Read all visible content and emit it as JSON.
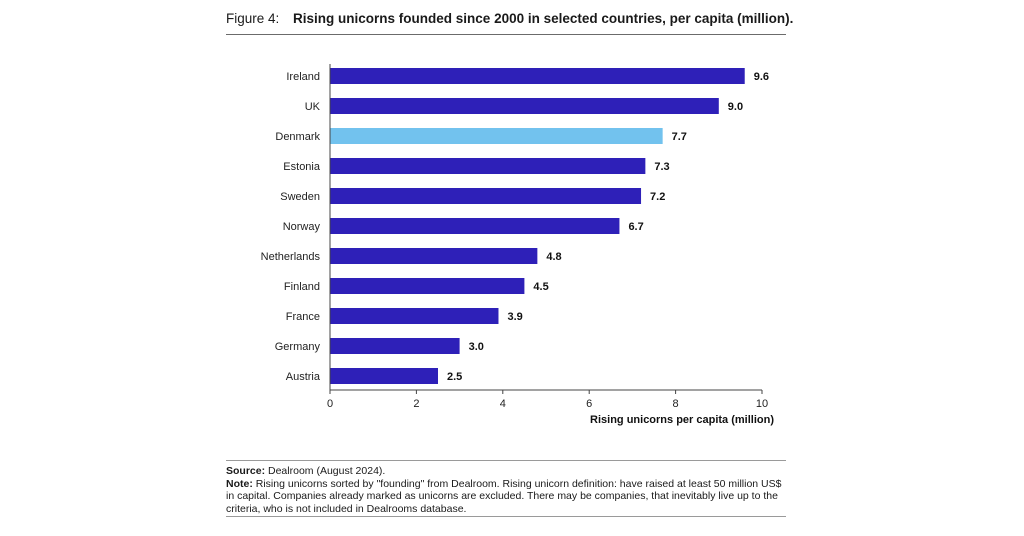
{
  "figure": {
    "label": "Figure 4:",
    "title": "Rising unicorns founded since 2000 in selected countries, per capita (million)."
  },
  "chart_data": {
    "type": "bar",
    "orientation": "horizontal",
    "categories": [
      "Ireland",
      "UK",
      "Denmark",
      "Estonia",
      "Sweden",
      "Norway",
      "Netherlands",
      "Finland",
      "France",
      "Germany",
      "Austria"
    ],
    "values": [
      9.6,
      9.0,
      7.7,
      7.3,
      7.2,
      6.7,
      4.8,
      4.5,
      3.9,
      3.0,
      2.5
    ],
    "value_labels": [
      "9.6",
      "9.0",
      "7.7",
      "7.3",
      "7.2",
      "6.7",
      "4.8",
      "4.5",
      "3.9",
      "3.0",
      "2.5"
    ],
    "highlight": "Denmark",
    "colors": {
      "bar": "#2e20b8",
      "highlight": "#72c2ee"
    },
    "xlabel": "Rising unicorns per capita (million)",
    "xlim": [
      0,
      10
    ],
    "xticks": [
      0,
      2,
      4,
      6,
      8,
      10
    ],
    "grid": false,
    "legend": "none"
  },
  "footer": {
    "source_label": "Source:",
    "source_text": " Dealroom (August 2024).",
    "note_label": "Note:",
    "note_text": " Rising unicorns sorted by \"founding\" from Dealroom. Rising unicorn definition: have raised at least 50 million US$ in capital. Companies already marked as unicorns are excluded. There may be companies, that inevitably live up to the criteria, who is not included in Dealrooms database."
  }
}
